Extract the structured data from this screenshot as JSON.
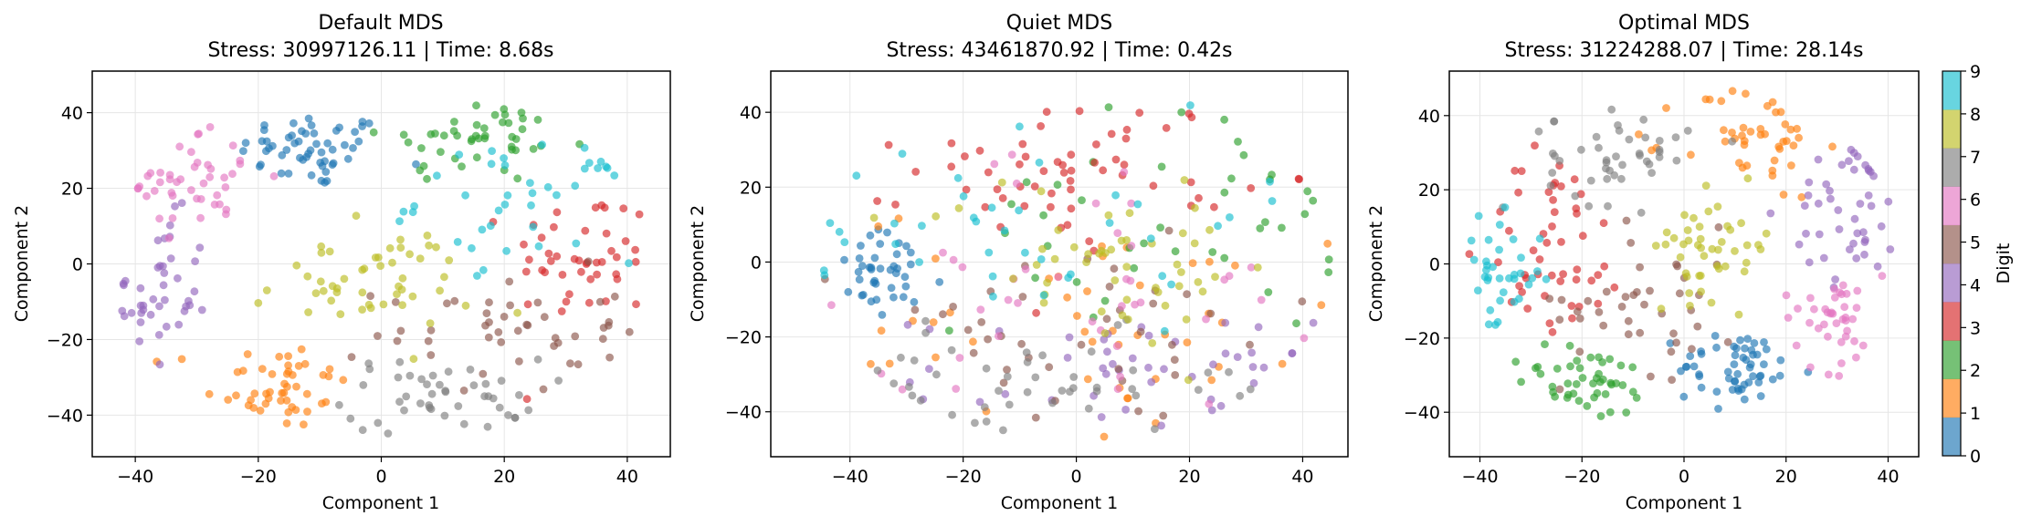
{
  "palette": [
    "#1f77b4",
    "#ff7f0e",
    "#2ca02c",
    "#d62728",
    "#9467bd",
    "#8c564b",
    "#e377c2",
    "#7f7f7f",
    "#bcbd22",
    "#17becf"
  ],
  "chart_data": [
    {
      "type": "scatter",
      "title": "Default MDS",
      "subtitle": "Stress: 30997126.11 | Time: 8.68s",
      "xlabel": "Component 1",
      "ylabel": "Component 2",
      "xlim": [
        -47,
        47
      ],
      "ylim": [
        -51,
        51
      ],
      "xticks": [
        -40,
        -20,
        0,
        20,
        40
      ],
      "yticks": [
        -40,
        -20,
        0,
        20,
        40
      ],
      "grid": true,
      "clusters": [
        {
          "digit": 0,
          "center": [
            -11,
            30
          ],
          "spread": [
            6,
            5
          ],
          "n": 55
        },
        {
          "digit": 1,
          "center": [
            -17,
            -32
          ],
          "spread": [
            6,
            6
          ],
          "n": 48
        },
        {
          "digit": 2,
          "center": [
            16,
            33
          ],
          "spread": [
            8,
            6
          ],
          "n": 45
        },
        {
          "digit": 3,
          "center": [
            33,
            2
          ],
          "spread": [
            6,
            9
          ],
          "n": 45
        },
        {
          "digit": 4,
          "center": [
            -36,
            -8
          ],
          "spread": [
            4,
            10
          ],
          "n": 42
        },
        {
          "digit": 5,
          "center": [
            20,
            -18
          ],
          "spread": [
            10,
            8
          ],
          "n": 45
        },
        {
          "digit": 6,
          "center": [
            -30,
            23
          ],
          "spread": [
            6,
            7
          ],
          "n": 45
        },
        {
          "digit": 7,
          "center": [
            10,
            -35
          ],
          "spread": [
            8,
            5
          ],
          "n": 45
        },
        {
          "digit": 8,
          "center": [
            -3,
            -5
          ],
          "spread": [
            9,
            7
          ],
          "n": 50
        },
        {
          "digit": 9,
          "center": [
            24,
            17
          ],
          "spread": [
            9,
            8
          ],
          "n": 40
        }
      ]
    },
    {
      "type": "scatter",
      "title": "Quiet MDS",
      "subtitle": "Stress: 43461870.92 | Time: 0.42s",
      "xlabel": "Component 1",
      "ylabel": "Component 2",
      "xlim": [
        -54,
        48
      ],
      "ylim": [
        -52,
        51
      ],
      "xticks": [
        -40,
        -20,
        0,
        20,
        40
      ],
      "yticks": [
        -40,
        -20,
        0,
        20,
        40
      ],
      "grid": true,
      "clusters": [
        {
          "digit": 0,
          "center": [
            -33,
            -4
          ],
          "spread": [
            5,
            6
          ],
          "n": 40
        },
        {
          "digit": 1,
          "center": [
            5,
            -15
          ],
          "spread": [
            22,
            15
          ],
          "n": 45
        },
        {
          "digit": 2,
          "center": [
            15,
            10
          ],
          "spread": [
            18,
            15
          ],
          "n": 40
        },
        {
          "digit": 3,
          "center": [
            0,
            25
          ],
          "spread": [
            14,
            10
          ],
          "n": 60
        },
        {
          "digit": 4,
          "center": [
            8,
            -30
          ],
          "spread": [
            18,
            8
          ],
          "n": 45
        },
        {
          "digit": 5,
          "center": [
            0,
            -20
          ],
          "spread": [
            22,
            13
          ],
          "n": 40
        },
        {
          "digit": 6,
          "center": [
            0,
            -5
          ],
          "spread": [
            22,
            18
          ],
          "n": 40
        },
        {
          "digit": 7,
          "center": [
            -8,
            -35
          ],
          "spread": [
            18,
            8
          ],
          "n": 45
        },
        {
          "digit": 8,
          "center": [
            5,
            0
          ],
          "spread": [
            16,
            12
          ],
          "n": 50
        },
        {
          "digit": 9,
          "center": [
            -10,
            12
          ],
          "spread": [
            20,
            15
          ],
          "n": 40
        }
      ]
    },
    {
      "type": "scatter",
      "title": "Optimal MDS",
      "subtitle": "Stress: 31224288.07 | Time: 28.14s",
      "xlabel": "Component 1",
      "ylabel": "Component 2",
      "xlim": [
        -46,
        46
      ],
      "ylim": [
        -52,
        52
      ],
      "xticks": [
        -40,
        -20,
        0,
        20,
        40
      ],
      "yticks": [
        -40,
        -20,
        0,
        20,
        40
      ],
      "grid": true,
      "clusters": [
        {
          "digit": 0,
          "center": [
            11,
            -28
          ],
          "spread": [
            6,
            5
          ],
          "n": 55
        },
        {
          "digit": 1,
          "center": [
            13,
            33
          ],
          "spread": [
            7,
            8
          ],
          "n": 45
        },
        {
          "digit": 2,
          "center": [
            -19,
            -32
          ],
          "spread": [
            7,
            5
          ],
          "n": 45
        },
        {
          "digit": 3,
          "center": [
            -25,
            5
          ],
          "spread": [
            7,
            13
          ],
          "n": 50
        },
        {
          "digit": 4,
          "center": [
            33,
            15
          ],
          "spread": [
            6,
            10
          ],
          "n": 45
        },
        {
          "digit": 5,
          "center": [
            -6,
            -10
          ],
          "spread": [
            9,
            10
          ],
          "n": 40
        },
        {
          "digit": 6,
          "center": [
            29,
            -14
          ],
          "spread": [
            5,
            7
          ],
          "n": 40
        },
        {
          "digit": 7,
          "center": [
            -13,
            30
          ],
          "spread": [
            7,
            7
          ],
          "n": 45
        },
        {
          "digit": 8,
          "center": [
            6,
            5
          ],
          "spread": [
            6,
            7
          ],
          "n": 45
        },
        {
          "digit": 9,
          "center": [
            -36,
            -4
          ],
          "spread": [
            4,
            8
          ],
          "n": 35
        }
      ]
    }
  ],
  "colorbar": {
    "label": "Digit",
    "ticks": [
      "0",
      "1",
      "2",
      "3",
      "4",
      "5",
      "6",
      "7",
      "8",
      "9"
    ]
  }
}
